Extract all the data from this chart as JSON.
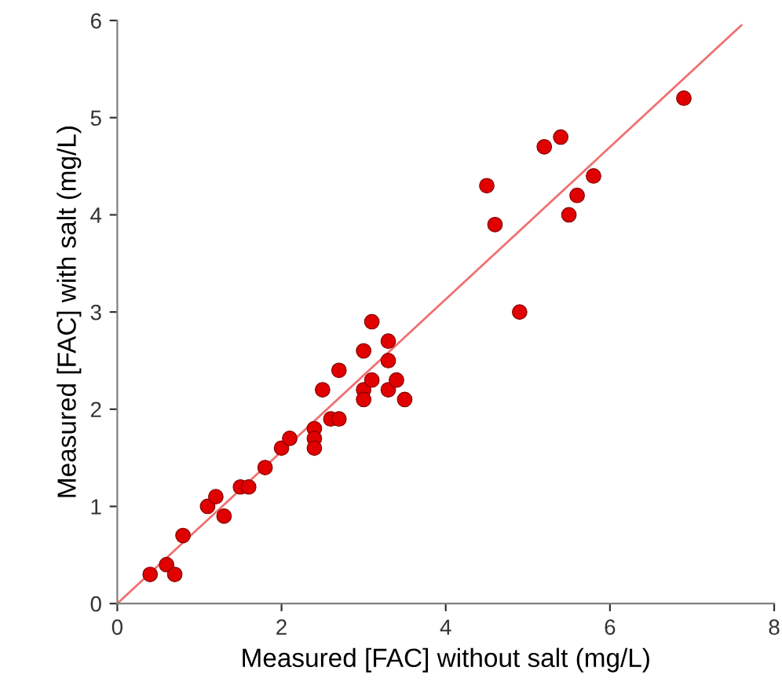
{
  "chart_data": {
    "type": "scatter",
    "xlabel": "Measured [FAC] without salt (mg/L)",
    "ylabel": "Measured [FAC] with salt (mg/L)",
    "xlim": [
      0,
      8
    ],
    "xticks": [
      0,
      2,
      4,
      6,
      8
    ],
    "ylim": [
      0,
      6
    ],
    "yticks": [
      0,
      1,
      2,
      3,
      4,
      5,
      6
    ],
    "grid": false,
    "legend": false,
    "series": [
      {
        "marker": "circle",
        "color": "#e00000",
        "x": [
          0.4,
          0.6,
          0.7,
          0.8,
          1.1,
          1.2,
          1.3,
          1.5,
          1.6,
          1.8,
          2.0,
          2.1,
          2.4,
          2.4,
          2.4,
          2.5,
          2.6,
          2.7,
          2.7,
          3.0,
          3.0,
          3.0,
          3.1,
          3.1,
          3.3,
          3.3,
          3.3,
          3.4,
          3.5,
          4.5,
          4.6,
          4.9,
          5.2,
          5.4,
          5.5,
          5.6,
          5.8,
          6.9
        ],
        "values": [
          0.3,
          0.4,
          0.3,
          0.7,
          1.0,
          1.1,
          0.9,
          1.2,
          1.2,
          1.4,
          1.6,
          1.7,
          1.8,
          1.7,
          1.6,
          2.2,
          1.9,
          1.9,
          2.4,
          2.6,
          2.2,
          2.1,
          2.9,
          2.3,
          2.7,
          2.5,
          2.2,
          2.3,
          2.1,
          4.3,
          3.9,
          3.0,
          4.7,
          4.8,
          4.0,
          4.2,
          4.4,
          5.2
        ]
      },
      {
        "type": "line",
        "marker": "none",
        "color": "#f07070",
        "line_style": "solid",
        "x": [
          0,
          7.6
        ],
        "values": [
          0,
          5.95
        ]
      }
    ]
  }
}
